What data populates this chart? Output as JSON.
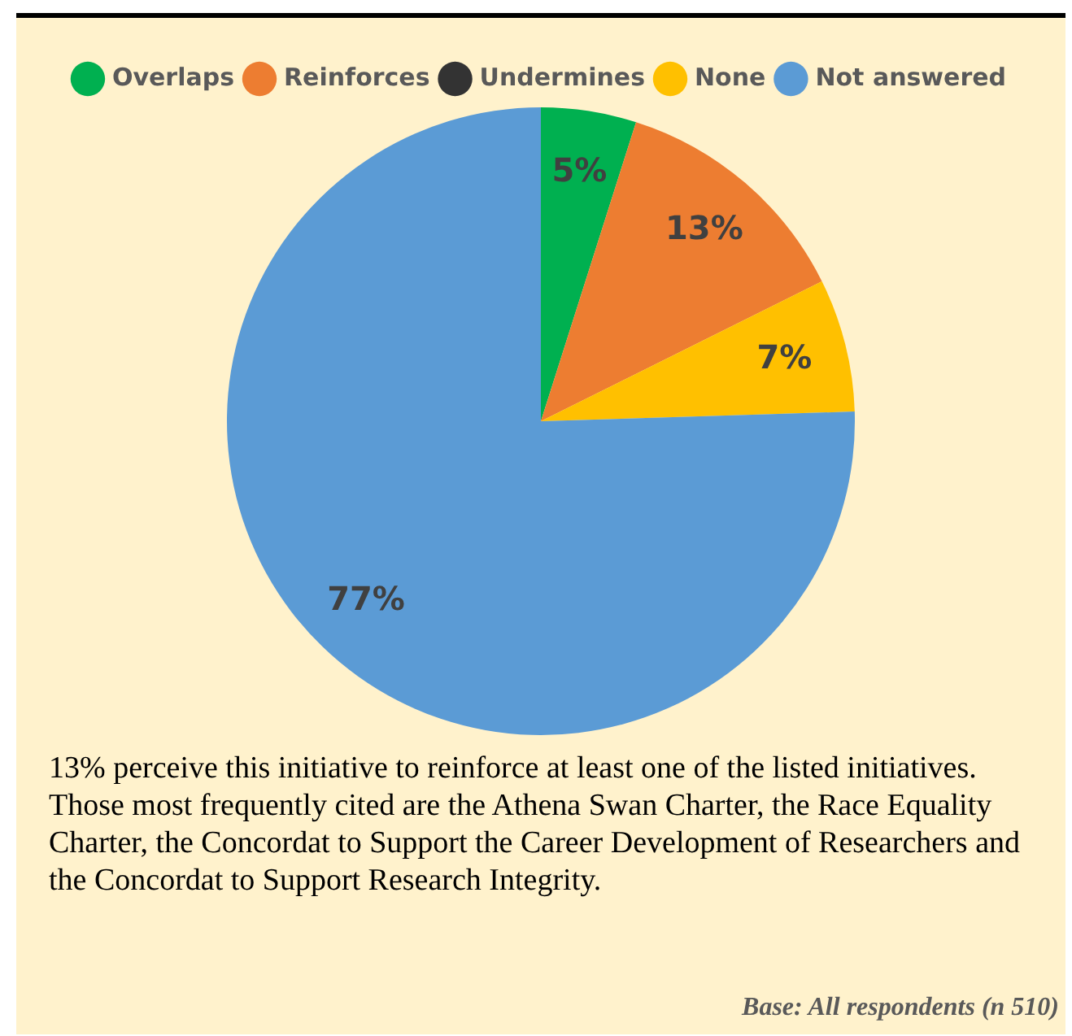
{
  "chart_data": {
    "type": "pie",
    "categories": [
      "Overlaps",
      "Reinforces",
      "Undermines",
      "None",
      "Not answered"
    ],
    "values": [
      5,
      13,
      0,
      7,
      77
    ],
    "colors": [
      "#00b050",
      "#ed7d31",
      "#333333",
      "#ffc000",
      "#5b9bd5"
    ],
    "value_labels": [
      "5%",
      "13%",
      null,
      "7%",
      "77%"
    ],
    "legend": "top",
    "annotations": [
      "13% perceive this initiative to reinforce at least one of the listed initiatives. Those most frequently cited are the Athena Swan Charter, the Race Equality Charter, the Concordat to Support the Career Development of Researchers and the Concordat to Support Research Integrity.",
      "Base: All respondents (n 510)"
    ]
  }
}
